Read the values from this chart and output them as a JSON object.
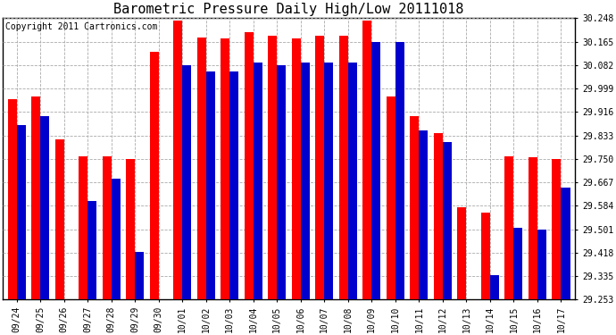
{
  "title": "Barometric Pressure Daily High/Low 20111018",
  "copyright": "Copyright 2011 Cartronics.com",
  "dates": [
    "09/24",
    "09/25",
    "09/26",
    "09/27",
    "09/28",
    "09/29",
    "09/30",
    "10/01",
    "10/02",
    "10/03",
    "10/04",
    "10/05",
    "10/06",
    "10/07",
    "10/08",
    "10/09",
    "10/10",
    "10/11",
    "10/12",
    "10/13",
    "10/14",
    "10/15",
    "10/16",
    "10/17"
  ],
  "highs": [
    29.96,
    29.97,
    29.82,
    29.76,
    29.76,
    29.75,
    30.13,
    30.24,
    30.18,
    30.175,
    30.2,
    30.185,
    30.175,
    30.185,
    30.185,
    30.24,
    29.97,
    29.9,
    29.84,
    29.58,
    29.56,
    29.76,
    29.755,
    29.75
  ],
  "lows": [
    29.87,
    29.9,
    29.253,
    29.6,
    29.68,
    29.42,
    29.253,
    30.08,
    30.06,
    30.06,
    30.09,
    30.08,
    30.09,
    30.09,
    30.09,
    30.165,
    30.165,
    29.85,
    29.81,
    29.253,
    29.34,
    29.505,
    29.5,
    29.65
  ],
  "high_color": "#ff0000",
  "low_color": "#0000cc",
  "ylim_min": 29.253,
  "ylim_max": 30.248,
  "yticks": [
    29.253,
    29.335,
    29.418,
    29.501,
    29.584,
    29.667,
    29.75,
    29.833,
    29.916,
    29.999,
    30.082,
    30.165,
    30.248
  ],
  "bg_color": "#ffffff",
  "grid_color": "#aaaaaa",
  "title_fontsize": 11,
  "copyright_fontsize": 7
}
